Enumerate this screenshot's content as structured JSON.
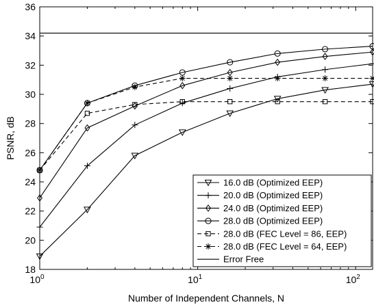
{
  "chart_data": {
    "type": "line",
    "xlabel": "Number of Independent Channels, N",
    "ylabel": "PSNR, dB",
    "xscale": "log",
    "xlim": [
      1,
      128
    ],
    "ylim": [
      18,
      36
    ],
    "x_ticks": [
      {
        "value": 1,
        "base": "10",
        "exp": "0"
      },
      {
        "value": 10,
        "base": "10",
        "exp": "1"
      },
      {
        "value": 100,
        "base": "10",
        "exp": "2"
      }
    ],
    "y_ticks": [
      "18",
      "20",
      "22",
      "24",
      "26",
      "28",
      "30",
      "32",
      "34",
      "36"
    ],
    "legend_position": "bottom-right",
    "grid": false,
    "series": [
      {
        "name": "16.0 dB (Optimized EEP)",
        "marker": "triangle-down",
        "dash": "solid",
        "x": [
          1,
          2,
          4,
          8,
          16,
          32,
          64,
          128
        ],
        "y": [
          18.9,
          22.1,
          25.8,
          27.4,
          28.7,
          29.7,
          30.3,
          30.7
        ]
      },
      {
        "name": "20.0 dB (Optimized EEP)",
        "marker": "plus",
        "dash": "solid",
        "x": [
          1,
          2,
          4,
          8,
          16,
          32,
          64,
          128
        ],
        "y": [
          20.9,
          25.1,
          27.9,
          29.4,
          30.4,
          31.2,
          31.7,
          32.1
        ]
      },
      {
        "name": "24.0 dB (Optimized EEP)",
        "marker": "diamond",
        "dash": "solid",
        "x": [
          1,
          2,
          4,
          8,
          16,
          32,
          64,
          128
        ],
        "y": [
          22.9,
          27.7,
          29.2,
          30.6,
          31.5,
          32.2,
          32.6,
          32.9
        ]
      },
      {
        "name": "28.0 dB (Optimized EEP)",
        "marker": "circle",
        "dash": "solid",
        "x": [
          1,
          2,
          4,
          8,
          16,
          32,
          64,
          128
        ],
        "y": [
          24.8,
          29.4,
          30.6,
          31.5,
          32.2,
          32.8,
          33.1,
          33.3
        ]
      },
      {
        "name": "28.0 dB (FEC Level = 86, EEP)",
        "marker": "square",
        "dash": "dashed",
        "x": [
          1,
          2,
          4,
          8,
          16,
          32,
          64,
          128
        ],
        "y": [
          24.8,
          28.7,
          29.3,
          29.5,
          29.5,
          29.5,
          29.5,
          29.5
        ]
      },
      {
        "name": "28.0 dB (FEC Level = 64, EEP)",
        "marker": "star",
        "dash": "dashed",
        "x": [
          1,
          2,
          4,
          8,
          16,
          32,
          64,
          128
        ],
        "y": [
          24.8,
          29.4,
          30.5,
          31.1,
          31.1,
          31.1,
          31.1,
          31.1
        ]
      },
      {
        "name": "Error Free",
        "marker": "none",
        "dash": "solid",
        "x": [
          1,
          128
        ],
        "y": [
          34.2,
          34.2
        ]
      }
    ]
  }
}
